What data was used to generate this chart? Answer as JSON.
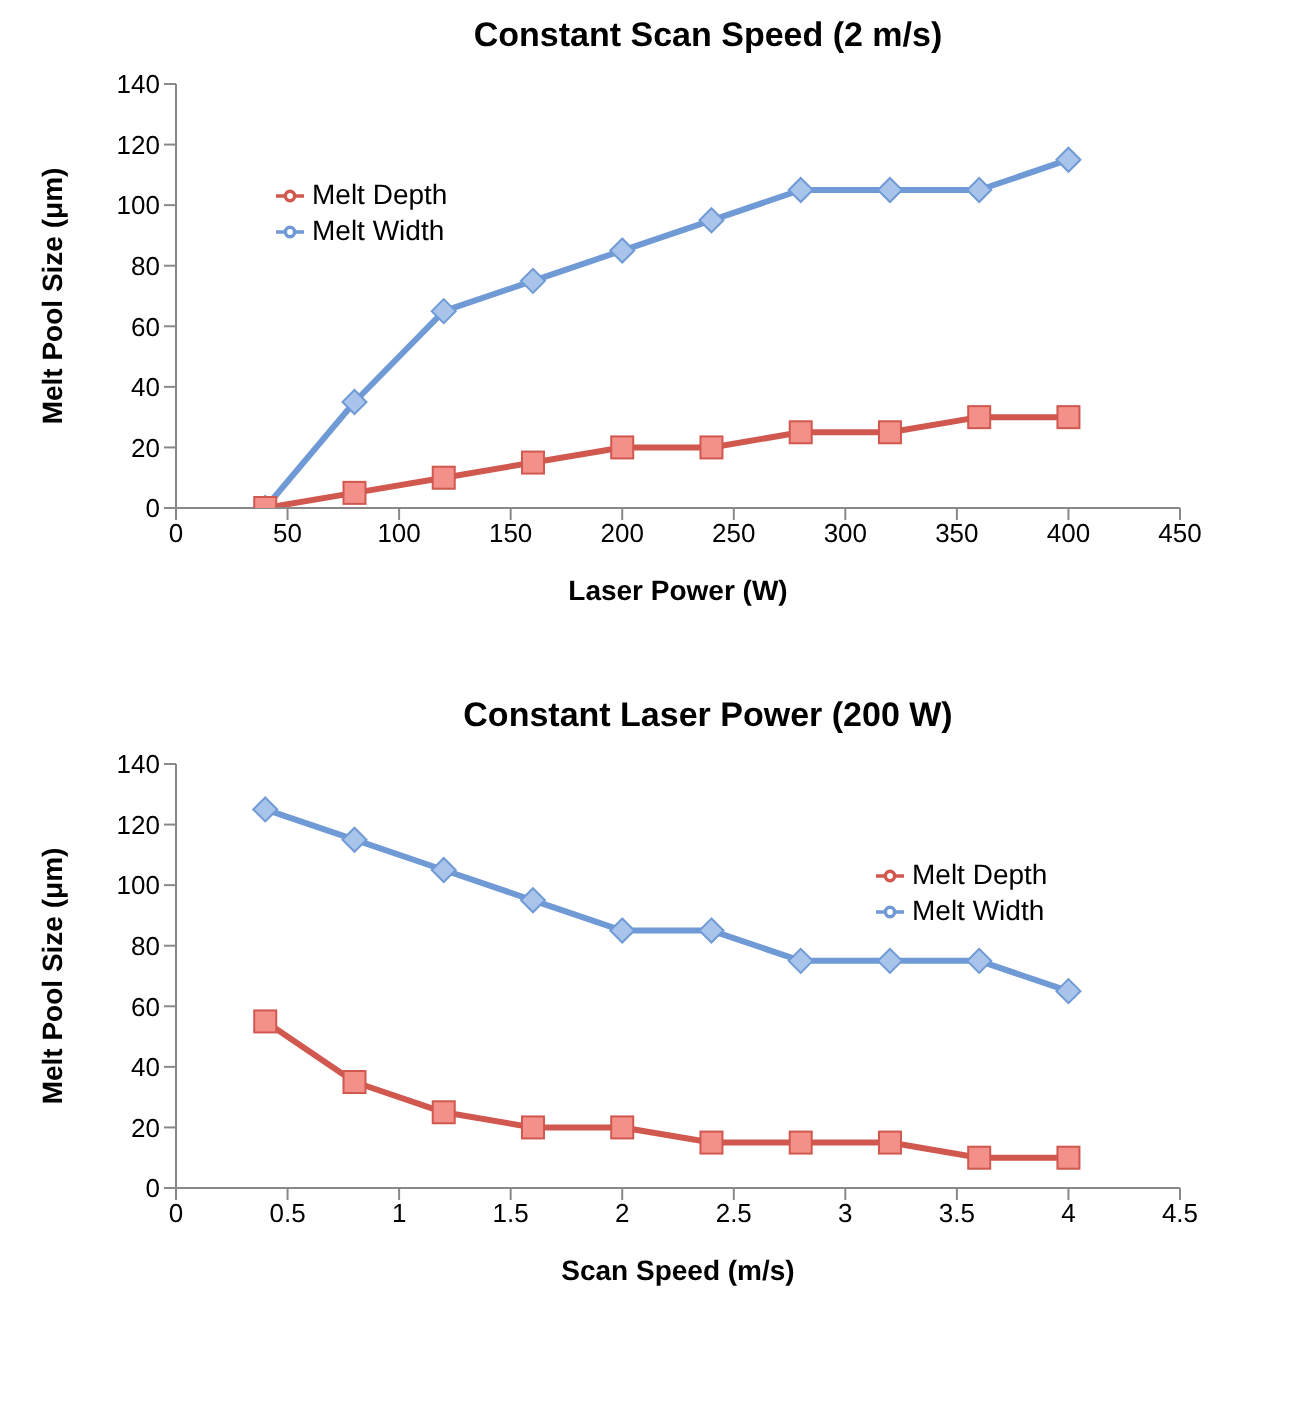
{
  "chart_data": [
    {
      "type": "line",
      "title": "Constant Scan Speed (2 m/s)",
      "xlabel": "Laser Power (W)",
      "ylabel": "Melt Pool Size (μm)",
      "x": [
        40,
        80,
        120,
        160,
        200,
        240,
        280,
        320,
        360,
        400
      ],
      "series": [
        {
          "name": "Melt Width",
          "color": "#6f9ad6",
          "marker": "diamond",
          "values": [
            0,
            35,
            65,
            75,
            85,
            95,
            105,
            105,
            105,
            115
          ]
        },
        {
          "name": "Melt Depth",
          "color": "#d0584f",
          "marker": "square",
          "values": [
            0,
            5,
            10,
            15,
            20,
            20,
            25,
            25,
            30,
            30
          ]
        }
      ],
      "xlim": [
        0,
        450
      ],
      "xticks": [
        0,
        50,
        100,
        150,
        200,
        250,
        300,
        350,
        400,
        450
      ],
      "ylim": [
        0,
        140
      ],
      "yticks": [
        0,
        20,
        40,
        60,
        80,
        100,
        120,
        140
      ],
      "grid": false,
      "legend": "top left"
    },
    {
      "type": "line",
      "title": "Constant Laser Power (200 W)",
      "xlabel": "Scan Speed (m/s)",
      "ylabel": "Melt Pool Size (μm)",
      "x": [
        0.4,
        0.8,
        1.2,
        1.6,
        2,
        2.4,
        2.8,
        3.2,
        3.6,
        4
      ],
      "series": [
        {
          "name": "Melt Width",
          "color": "#6f9ad6",
          "marker": "diamond",
          "values": [
            125,
            115,
            105,
            95,
            85,
            85,
            75,
            75,
            75,
            65
          ]
        },
        {
          "name": "Melt Depth",
          "color": "#d0584f",
          "marker": "square",
          "values": [
            55,
            35,
            25,
            20,
            20,
            15,
            15,
            15,
            10,
            10
          ]
        }
      ],
      "xlim": [
        0,
        4.5
      ],
      "xticks": [
        0,
        0.5,
        1,
        1.5,
        2,
        2.5,
        3,
        3.5,
        4,
        4.5
      ],
      "ylim": [
        0,
        140
      ],
      "yticks": [
        0,
        20,
        40,
        60,
        80,
        100,
        120,
        140
      ],
      "grid": false,
      "legend": "top right"
    }
  ]
}
